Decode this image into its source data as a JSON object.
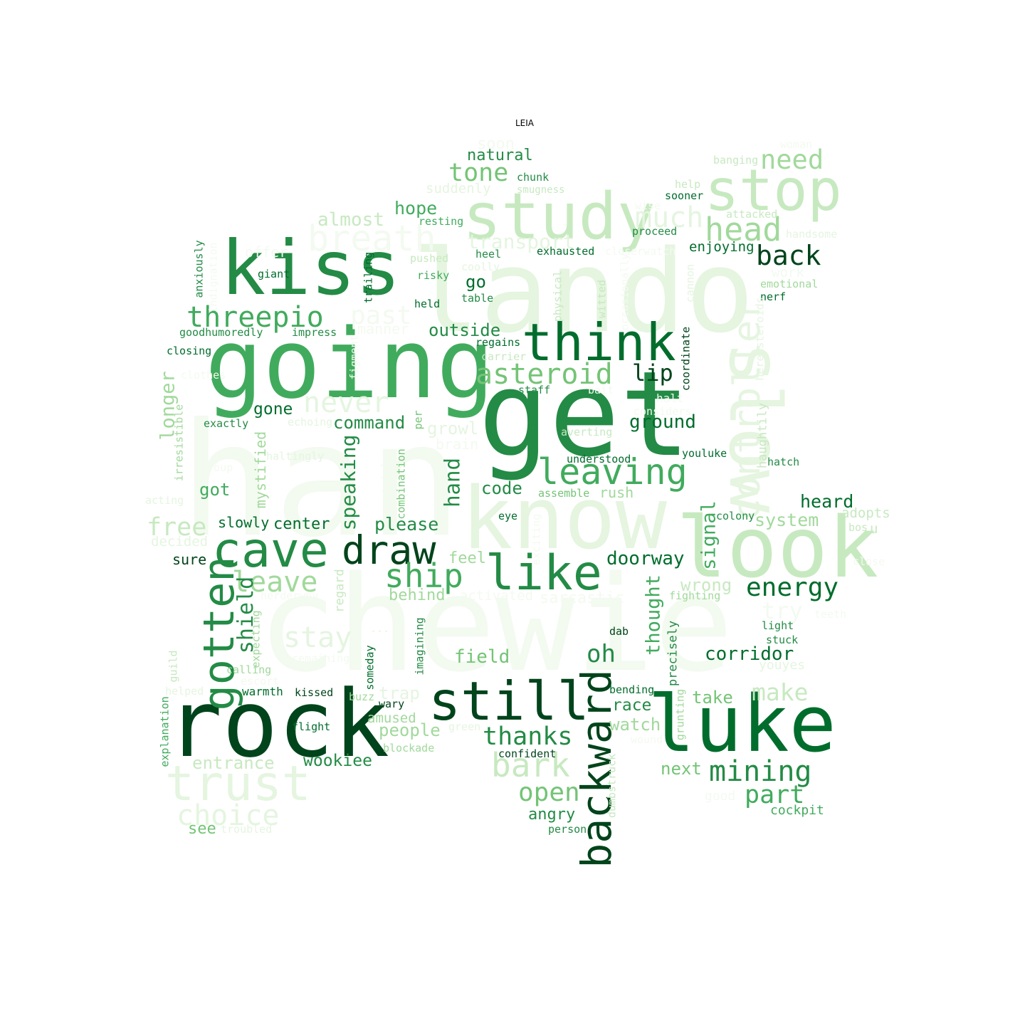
{
  "title": "LEIA",
  "colors": {
    "1": "#00441b",
    "2": "#006d2c",
    "3": "#238b45",
    "4": "#41ab5d",
    "5": "#74c476",
    "6": "#a1d99b",
    "7": "#c7e9c0",
    "8": "#e5f5e0",
    "9": "#f3faf0"
  },
  "words": [
    {
      "t": "han",
      "s": 220,
      "c": 9
    },
    {
      "t": "chewie",
      "s": 185,
      "c": 9
    },
    {
      "t": "lando",
      "s": 160,
      "c": 8
    },
    {
      "t": "get",
      "s": 165,
      "c": 3
    },
    {
      "t": "going",
      "s": 135,
      "c": 4
    },
    {
      "t": "rock",
      "s": 130,
      "c": 1
    },
    {
      "t": "know",
      "s": 120,
      "c": 8
    },
    {
      "t": "look",
      "s": 118,
      "c": 7
    },
    {
      "t": "luke",
      "s": 110,
      "c": 2
    },
    {
      "t": "kiss",
      "s": 105,
      "c": 3
    },
    {
      "t": "slow",
      "s": 100,
      "c": 8
    },
    {
      "t": "study",
      "s": 90,
      "c": 7
    },
    {
      "t": "stop",
      "s": 80,
      "c": 7
    },
    {
      "t": "still",
      "s": 75,
      "c": 1
    },
    {
      "t": "think",
      "s": 72,
      "c": 2
    },
    {
      "t": "like",
      "s": 68,
      "c": 3
    },
    {
      "t": "trust",
      "s": 68,
      "c": 8
    },
    {
      "t": "cave",
      "s": 68,
      "c": 3
    },
    {
      "t": "gotten",
      "s": 60,
      "c": 3
    },
    {
      "t": "backward",
      "s": 58,
      "c": 1
    },
    {
      "t": "draw",
      "s": 55,
      "c": 1
    },
    {
      "t": "controller",
      "s": 52,
      "c": 8
    },
    {
      "t": "breath",
      "s": 50,
      "c": 9
    },
    {
      "t": "leaving",
      "s": 50,
      "c": 4
    },
    {
      "t": "ship",
      "s": 46,
      "c": 4
    },
    {
      "t": "bark",
      "s": 46,
      "c": 7
    },
    {
      "t": "head",
      "s": 45,
      "c": 6
    },
    {
      "t": "much",
      "s": 40,
      "c": 8
    },
    {
      "t": "never",
      "s": 40,
      "c": 8
    },
    {
      "t": "mining",
      "s": 40,
      "c": 3
    },
    {
      "t": "asteroid",
      "s": 40,
      "c": 5
    },
    {
      "t": "threepio",
      "s": 40,
      "c": 4
    },
    {
      "t": "leave",
      "s": 40,
      "c": 6
    },
    {
      "t": "stay",
      "s": 40,
      "c": 8
    },
    {
      "t": "choice",
      "s": 40,
      "c": 8
    },
    {
      "t": "back",
      "s": 38,
      "c": 1
    },
    {
      "t": "need",
      "s": 37,
      "c": 6
    },
    {
      "t": "energy",
      "s": 36,
      "c": 2
    },
    {
      "t": "past",
      "s": 36,
      "c": 9
    },
    {
      "t": "open",
      "s": 36,
      "c": 5
    },
    {
      "t": "tone",
      "s": 35,
      "c": 5
    },
    {
      "t": "thanks",
      "s": 35,
      "c": 3
    },
    {
      "t": "part",
      "s": 35,
      "c": 4
    },
    {
      "t": "free",
      "s": 35,
      "c": 7
    },
    {
      "t": "oh",
      "s": 34,
      "c": 3
    },
    {
      "t": "make",
      "s": 33,
      "c": 7
    },
    {
      "t": "lip",
      "s": 32,
      "c": 1
    },
    {
      "t": "try",
      "s": 32,
      "c": 9
    },
    {
      "t": "shield",
      "s": 30,
      "c": 3
    },
    {
      "t": "hand",
      "s": 29,
      "c": 3
    },
    {
      "t": "transport",
      "s": 28,
      "c": 8
    },
    {
      "t": "speaking",
      "s": 28,
      "c": 3
    },
    {
      "t": "longer",
      "s": 27,
      "c": 6
    },
    {
      "t": "signal",
      "s": 27,
      "c": 4
    },
    {
      "t": "thought",
      "s": 27,
      "c": 4
    },
    {
      "t": "doorway",
      "s": 26,
      "c": 2
    },
    {
      "t": "field",
      "s": 26,
      "c": 5
    },
    {
      "t": "ground",
      "s": 26,
      "c": 2
    },
    {
      "t": "corridor",
      "s": 26,
      "c": 2
    },
    {
      "t": "almost",
      "s": 26,
      "c": 7
    },
    {
      "t": "hope",
      "s": 25,
      "c": 4
    },
    {
      "t": "heard",
      "s": 25,
      "c": 2
    },
    {
      "t": "please",
      "s": 25,
      "c": 3
    },
    {
      "t": "system",
      "s": 25,
      "c": 6
    },
    {
      "t": "outside",
      "s": 24,
      "c": 3
    },
    {
      "t": "command",
      "s": 24,
      "c": 3
    },
    {
      "t": "code",
      "s": 24,
      "c": 3
    },
    {
      "t": "growl",
      "s": 24,
      "c": 8
    },
    {
      "t": "got",
      "s": 24,
      "c": 4
    },
    {
      "t": "go",
      "s": 24,
      "c": 2
    },
    {
      "t": "wrong",
      "s": 24,
      "c": 7
    },
    {
      "t": "people",
      "s": 24,
      "c": 6
    },
    {
      "t": "next",
      "s": 24,
      "c": 5
    },
    {
      "t": "take",
      "s": 24,
      "c": 5
    },
    {
      "t": "watch",
      "s": 24,
      "c": 6
    },
    {
      "t": "trap",
      "s": 24,
      "c": 8
    },
    {
      "t": "entrance",
      "s": 24,
      "c": 7
    },
    {
      "t": "race",
      "s": 23,
      "c": 3
    },
    {
      "t": "wookiee",
      "s": 23,
      "c": 3
    },
    {
      "t": "gone",
      "s": 23,
      "c": 2
    },
    {
      "t": "soon",
      "s": 22,
      "c": 9
    },
    {
      "t": "natural",
      "s": 22,
      "c": 3
    },
    {
      "t": "center",
      "s": 22,
      "c": 2
    },
    {
      "t": "angry",
      "s": 22,
      "c": 3
    },
    {
      "t": "behind",
      "s": 22,
      "c": 6
    },
    {
      "t": "feel",
      "s": 22,
      "c": 6
    },
    {
      "t": "sarcastic",
      "s": 22,
      "c": 9
    },
    {
      "t": "see",
      "s": 22,
      "c": 5
    },
    {
      "t": "mystified",
      "s": 20,
      "c": 6
    },
    {
      "t": "slowly",
      "s": 20,
      "c": 2
    },
    {
      "t": "manner",
      "s": 20,
      "c": 9
    },
    {
      "t": "rush",
      "s": 20,
      "c": 6
    },
    {
      "t": "offer",
      "s": 20,
      "c": 9
    },
    {
      "t": "brain",
      "s": 20,
      "c": 9
    },
    {
      "t": "sure",
      "s": 20,
      "c": 1
    },
    {
      "t": "enjoying",
      "s": 19,
      "c": 2
    },
    {
      "t": "u",
      "s": 19,
      "c": 7
    },
    {
      "t": "decided",
      "s": 19,
      "c": 8
    },
    {
      "t": "adopts",
      "s": 19,
      "c": 7
    },
    {
      "t": "suddenly",
      "s": 19,
      "c": 8
    },
    {
      "t": "activated",
      "s": 19,
      "c": 9
    },
    {
      "t": "work",
      "s": 19,
      "c": 9
    },
    {
      "t": "amused",
      "s": 19,
      "c": 6
    },
    {
      "t": "youyes",
      "s": 18,
      "c": 8
    },
    {
      "t": "cockpit",
      "s": 18,
      "c": 4
    },
    {
      "t": "regard",
      "s": 17,
      "c": 7
    },
    {
      "t": "halt",
      "s": 16,
      "c": 9
    },
    {
      "t": "giant",
      "s": 15,
      "c": 2
    },
    {
      "t": "imagining",
      "s": 15,
      "c": 3
    },
    {
      "t": "...",
      "s": 15,
      "c": 8
    },
    {
      "t": "chunk",
      "s": 15,
      "c": 3
    },
    {
      "t": "haltingly",
      "s": 15,
      "c": 8
    },
    {
      "t": "averting",
      "s": 15,
      "c": 7
    },
    {
      "t": "exhausted",
      "s": 15,
      "c": 2
    },
    {
      "t": "banging",
      "s": 15,
      "c": 7
    },
    {
      "t": "fighting",
      "s": 15,
      "c": 6
    },
    {
      "t": "blockade",
      "s": 15,
      "c": 6
    },
    {
      "t": "smugness",
      "s": 14,
      "c": 7
    },
    {
      "t": "resting",
      "s": 15,
      "c": 4
    },
    {
      "t": "sooner",
      "s": 15,
      "c": 2
    },
    {
      "t": "pushed",
      "s": 15,
      "c": 7
    },
    {
      "t": "heel",
      "s": 15,
      "c": 3
    },
    {
      "t": "attacked",
      "s": 15,
      "c": 7
    },
    {
      "t": "proceed",
      "s": 15,
      "c": 3
    },
    {
      "t": "risky",
      "s": 15,
      "c": 4
    },
    {
      "t": "coolly",
      "s": 15,
      "c": 8
    },
    {
      "t": "table",
      "s": 15,
      "c": 3
    },
    {
      "t": "emotional",
      "s": 15,
      "c": 6
    },
    {
      "t": "held",
      "s": 15,
      "c": 2
    },
    {
      "t": "nerf",
      "s": 15,
      "c": 2
    },
    {
      "t": "impress",
      "s": 15,
      "c": 3
    },
    {
      "t": "goodhumoredly",
      "s": 15,
      "c": 3
    },
    {
      "t": "regains",
      "s": 15,
      "c": 2
    },
    {
      "t": "closing",
      "s": 15,
      "c": 2
    },
    {
      "t": "carrier",
      "s": 15,
      "c": 7
    },
    {
      "t": "staff",
      "s": 15,
      "c": 3
    },
    {
      "t": "bait",
      "s": 15,
      "c": 9
    },
    {
      "t": "considers",
      "s": 15,
      "c": 9
    },
    {
      "t": "exactly",
      "s": 15,
      "c": 3
    },
    {
      "t": "echoing",
      "s": 15,
      "c": 8
    },
    {
      "t": "youluke",
      "s": 15,
      "c": 2
    },
    {
      "t": "understood",
      "s": 15,
      "c": 2
    },
    {
      "t": "hatch",
      "s": 15,
      "c": 3
    },
    {
      "t": "group",
      "s": 15,
      "c": 9
    },
    {
      "t": "assemble",
      "s": 15,
      "c": 5
    },
    {
      "t": "acting",
      "s": 15,
      "c": 8
    },
    {
      "t": "eye",
      "s": 15,
      "c": 2
    },
    {
      "t": "colony",
      "s": 15,
      "c": 3
    },
    {
      "t": "bos",
      "s": 15,
      "c": 7
    },
    {
      "t": "close",
      "s": 15,
      "c": 9
    },
    {
      "t": "herderwhy",
      "s": 15,
      "c": 9
    },
    {
      "t": "light",
      "s": 15,
      "c": 3
    },
    {
      "t": "teeth",
      "s": 15,
      "c": 9
    },
    {
      "t": "stuck",
      "s": 15,
      "c": 3
    },
    {
      "t": "dab",
      "s": 15,
      "c": 1
    },
    {
      "t": "calling",
      "s": 15,
      "c": 6
    },
    {
      "t": "escort",
      "s": 15,
      "c": 9
    },
    {
      "t": "remaining",
      "s": 15,
      "c": 9
    },
    {
      "t": "warmth",
      "s": 16,
      "c": 2
    },
    {
      "t": "kissed",
      "s": 15,
      "c": 1
    },
    {
      "t": "buzz",
      "s": 15,
      "c": 6
    },
    {
      "t": "wary",
      "s": 15,
      "c": 1
    },
    {
      "t": "bending",
      "s": 15,
      "c": 2
    },
    {
      "t": "helped",
      "s": 15,
      "c": 8
    },
    {
      "t": "flight",
      "s": 15,
      "c": 2
    },
    {
      "t": "green",
      "s": 15,
      "c": 8
    },
    {
      "t": "wound",
      "s": 15,
      "c": 9
    },
    {
      "t": "confident",
      "s": 15,
      "c": 1
    },
    {
      "t": "troubled",
      "s": 15,
      "c": 8
    },
    {
      "t": "person",
      "s": 15,
      "c": 3
    },
    {
      "t": "good",
      "s": 18,
      "c": 9
    },
    {
      "t": "handsome",
      "s": 15,
      "c": 8
    },
    {
      "t": "help",
      "s": 15,
      "c": 7
    },
    {
      "t": "wise",
      "s": 15,
      "c": 9
    },
    {
      "t": "woman",
      "s": 15,
      "c": 9
    },
    {
      "t": "closerwatch",
      "s": 15,
      "c": 9
    },
    {
      "t": "anxiously",
      "s": 15,
      "c": 3
    },
    {
      "t": "indignation",
      "s": 15,
      "c": 9
    },
    {
      "t": "trailing",
      "s": 15,
      "c": 2
    },
    {
      "t": "physical",
      "s": 15,
      "c": 7
    },
    {
      "t": "witted",
      "s": 15,
      "c": 7
    },
    {
      "t": "occasionally",
      "s": 15,
      "c": 9
    },
    {
      "t": "cannon",
      "s": 15,
      "c": 8
    },
    {
      "t": "coordinate",
      "s": 15,
      "c": 1
    },
    {
      "t": "hereasteroids",
      "s": 15,
      "c": 8
    },
    {
      "t": "haughtily",
      "s": 17,
      "c": 7
    },
    {
      "t": "figment",
      "s": 15,
      "c": 9
    },
    {
      "t": "irresistible",
      "s": 15,
      "c": 6
    },
    {
      "t": "per",
      "s": 15,
      "c": 5
    },
    {
      "t": "combination",
      "s": 15,
      "c": 5
    },
    {
      "t": "certainly",
      "s": 15,
      "c": 9
    },
    {
      "t": "exciting",
      "s": 15,
      "c": 9
    },
    {
      "t": "precisely",
      "s": 17,
      "c": 3
    },
    {
      "t": "grunting",
      "s": 15,
      "c": 6
    },
    {
      "t": "someday",
      "s": 15,
      "c": 2
    },
    {
      "t": "expecting",
      "s": 15,
      "c": 6
    },
    {
      "t": "guild",
      "s": 15,
      "c": 7
    },
    {
      "t": "explanation",
      "s": 15,
      "c": 4
    },
    {
      "t": "dumbstruck",
      "s": 15,
      "c": 7
    },
    {
      "t": "clothes",
      "s": 15,
      "c": 9
    }
  ]
}
